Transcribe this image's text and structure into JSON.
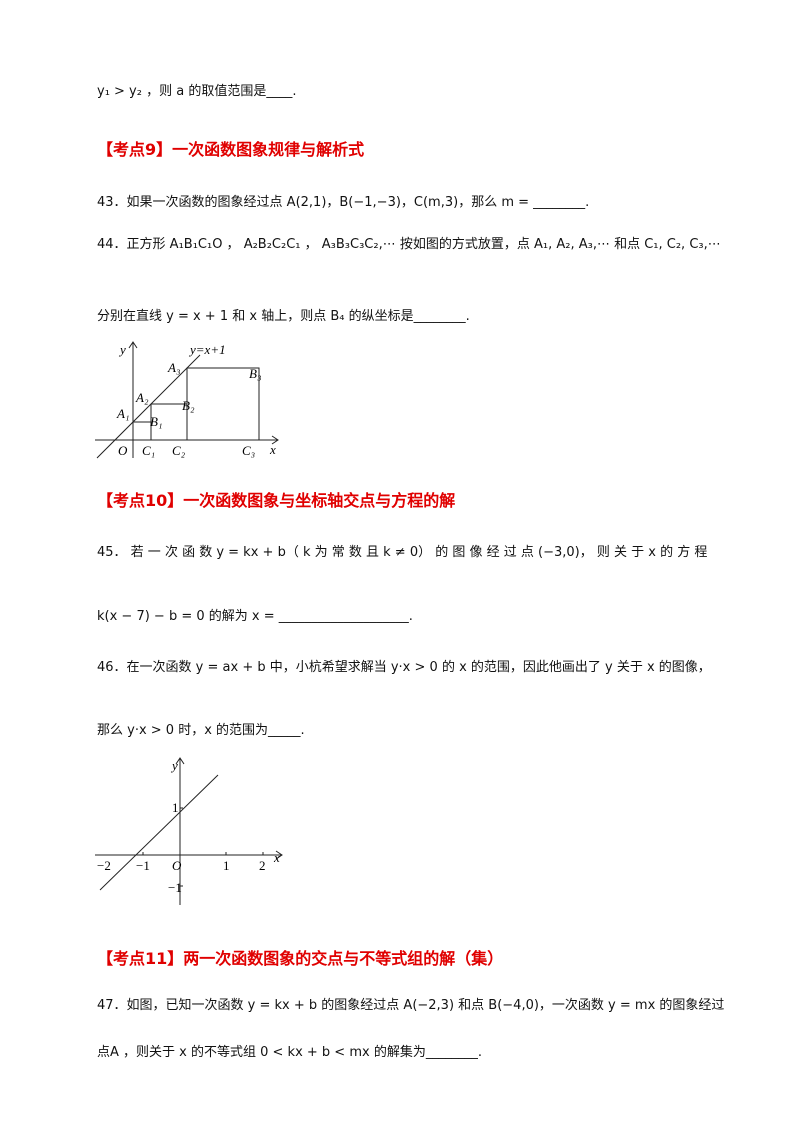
{
  "headings": [
    "【考点9】一次函数图象规律与解析式",
    "【考点10】一次函数图象与坐标轴交点与方程的解",
    "【考点11】两一次函数图象的交点与不等式组的解（集）"
  ],
  "paragraphs": [
    "y₁ > y₂ ，则 a 的取值范围是____.",
    "43．如果一次函数的图象经过点 A(2,1)，B(−1,−3)，C(m,3)，那么 m = ________.",
    "44．正方形 A₁B₁C₁O ， A₂B₂C₂C₁ ， A₃B₃C₃C₂,⋯ 按如图的方式放置，点 A₁, A₂, A₃,⋯ 和点 C₁, C₂, C₃,⋯",
    "分别在直线 y = x + 1 和 x 轴上，则点 B₄ 的纵坐标是________.",
    "45． 若 一 次 函 数 y = kx + b（ k 为 常 数 且 k ≠ 0） 的 图 像 经 过 点 (−3,0)， 则 关 于 x 的 方 程",
    "k(x − 7) − b = 0 的解为 x = ____________________.",
    "46．在一次函数 y = ax + b 中，小杭希望求解当 y·x > 0 的 x 的范围，因此他画出了 y 关于 x 的图像，",
    "那么 y·x > 0 时，x 的范围为_____.",
    "47．如图，已知一次函数 y = kx + b 的图象经过点 A(−2,3) 和点 B(−4,0)，一次函数 y = mx 的图象经过",
    "点A ，则关于 x 的不等式组 0 < kx + b < mx 的解集为________."
  ],
  "figure_1": {
    "labels": [
      "y",
      "y=x+1",
      "A₃",
      "B₃",
      "A₂",
      "B₂",
      "A₁",
      "B₁",
      "O",
      "C₁",
      "C₂",
      "C₃",
      "x"
    ]
  },
  "figure_2": {
    "labels": [
      "y",
      "1",
      "−2",
      "−1",
      "O",
      "1",
      "2",
      "x",
      "−1"
    ]
  }
}
